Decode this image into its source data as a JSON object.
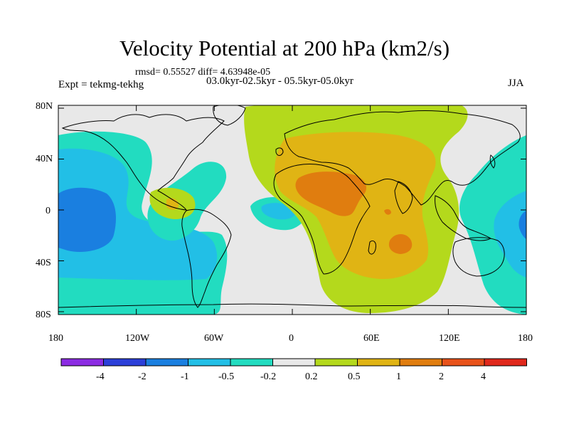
{
  "title": "Velocity Potential at 200 hPa (km2/s)",
  "rmsd_line": "rmsd= 0.55527 diff= 4.63948e-05",
  "experiment": "Expt = tekmg-tekhg",
  "period": "03.0kyr-02.5kyr - 05.5kyr-05.0kyr",
  "season": "JJA",
  "axes": {
    "x_ticks": [
      "180",
      "120W",
      "60W",
      "0",
      "60E",
      "120E",
      "180"
    ],
    "y_ticks": [
      "80N",
      "40N",
      "0",
      "40S",
      "80S"
    ]
  },
  "colorbar": {
    "labels": [
      "-4",
      "-2",
      "-1",
      "-0.5",
      "-0.2",
      "0.2",
      "0.5",
      "1",
      "2",
      "4"
    ],
    "colors": [
      "#8b2be2",
      "#2b3fd9",
      "#1a7fe0",
      "#22bfe6",
      "#22dcc0",
      "#e8e8e8",
      "#b4d91c",
      "#e0b414",
      "#e07d0f",
      "#e8521a",
      "#e0281c"
    ]
  },
  "palette": {
    "neutral": "#e8e8e8",
    "cyan": "#22dcc0",
    "lightblue": "#22bfe6",
    "blue": "#1a7fe0",
    "green": "#b4d91c",
    "yellow": "#e0b414",
    "orange": "#e07d0f"
  }
}
